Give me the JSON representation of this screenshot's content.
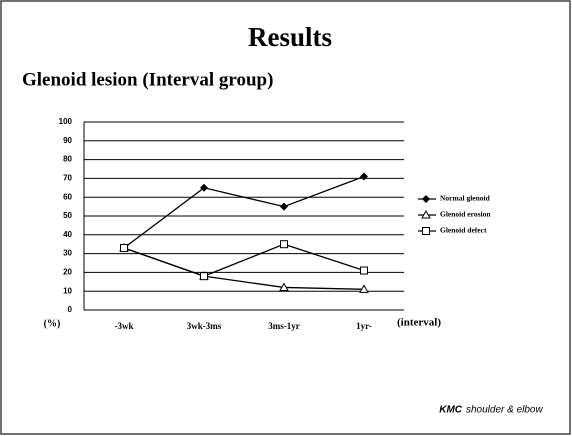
{
  "chart_data": {
    "type": "line",
    "title": "Results",
    "subtitle": "Glenoid lesion (Interval group)",
    "x_label": "(interval)",
    "y_label": "(%)",
    "categories": [
      "-3wk",
      "3wk-3ms",
      "3ms-1yr",
      "1yr-"
    ],
    "series": [
      {
        "name": "Normal glenoid",
        "color": "#000000",
        "marker": "diamond",
        "values": [
          33,
          65,
          55,
          71
        ]
      },
      {
        "name": "Glenoid erosion",
        "color": "#000000",
        "marker": "triangle",
        "values": [
          33,
          18,
          12,
          11
        ]
      },
      {
        "name": "Glenoid defect",
        "color": "#000000",
        "marker": "square",
        "values": [
          33,
          18,
          35,
          21
        ]
      }
    ],
    "ylim": [
      0,
      100
    ],
    "yticks": [
      0,
      10,
      20,
      30,
      40,
      50,
      60,
      70,
      80,
      90,
      100
    ],
    "grid": true,
    "legend": "right"
  },
  "footer": {
    "brand": "KMC",
    "text": "shoulder & elbow"
  }
}
